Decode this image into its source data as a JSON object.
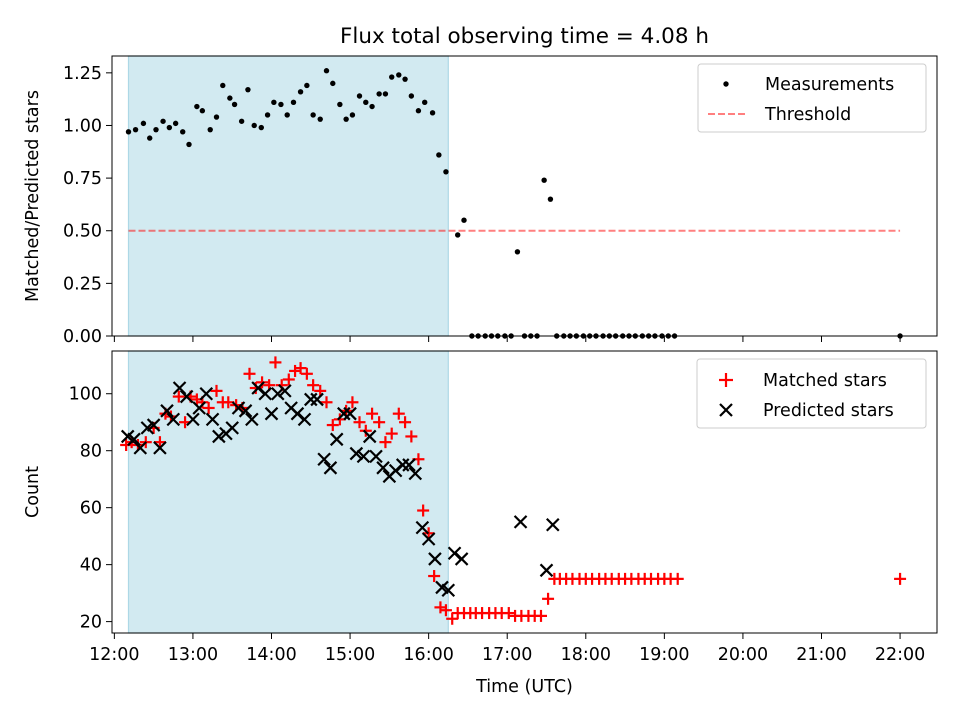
{
  "figure": {
    "title": "Flux total observing time = 4.08 h",
    "xlabel": "Time (UTC)",
    "x_ticks": [
      "12:00",
      "13:00",
      "14:00",
      "15:00",
      "16:00",
      "17:00",
      "18:00",
      "19:00",
      "20:00",
      "21:00",
      "22:00"
    ]
  },
  "colors": {
    "shade": "#add8e6",
    "threshold": "#ff0000",
    "matched": "#ff0000",
    "predicted": "#000000",
    "measurement": "#000000"
  },
  "chart_data": [
    {
      "type": "scatter",
      "panel": "top",
      "ylabel": "Matched/Predicted stars",
      "ylim": [
        0,
        1.33
      ],
      "xlim": [
        11.97,
        22.47
      ],
      "y_ticks": [
        "0.00",
        "0.25",
        "0.50",
        "0.75",
        "1.00",
        "1.25"
      ],
      "shaded_span": [
        12.18,
        16.25
      ],
      "legend": [
        "Measurements",
        "Threshold"
      ],
      "legend_position": "top-right",
      "threshold": {
        "name": "Threshold",
        "y": 0.5,
        "x_range": [
          12.18,
          22.0
        ]
      },
      "series": [
        {
          "name": "Measurements",
          "x": [
            12.18,
            12.27,
            12.37,
            12.45,
            12.53,
            12.62,
            12.7,
            12.78,
            12.87,
            12.95,
            13.05,
            13.12,
            13.22,
            13.3,
            13.38,
            13.47,
            13.53,
            13.62,
            13.7,
            13.78,
            13.87,
            13.95,
            14.03,
            14.12,
            14.2,
            14.28,
            14.37,
            14.45,
            14.53,
            14.62,
            14.7,
            14.78,
            14.87,
            14.95,
            15.03,
            15.12,
            15.2,
            15.28,
            15.37,
            15.45,
            15.53,
            15.62,
            15.7,
            15.78,
            15.87,
            15.95,
            16.05,
            16.13,
            16.22,
            16.37,
            16.45,
            16.55,
            16.63,
            16.72,
            16.8,
            16.88,
            16.97,
            17.05,
            17.13,
            17.22,
            17.3,
            17.38,
            17.47,
            17.55,
            17.63,
            17.72,
            17.8,
            17.88,
            17.97,
            18.05,
            18.13,
            18.22,
            18.3,
            18.38,
            18.47,
            18.55,
            18.63,
            18.72,
            18.8,
            18.88,
            18.97,
            19.05,
            19.13,
            22.0
          ],
          "y": [
            0.97,
            0.98,
            1.01,
            0.94,
            0.98,
            1.02,
            0.99,
            1.01,
            0.97,
            0.91,
            1.09,
            1.07,
            0.98,
            1.04,
            1.19,
            1.13,
            1.1,
            1.02,
            1.17,
            1.0,
            0.99,
            1.05,
            1.11,
            1.1,
            1.05,
            1.11,
            1.16,
            1.19,
            1.05,
            1.03,
            1.26,
            1.2,
            1.1,
            1.03,
            1.05,
            1.14,
            1.11,
            1.09,
            1.15,
            1.15,
            1.23,
            1.24,
            1.22,
            1.14,
            1.07,
            1.11,
            1.06,
            0.86,
            0.78,
            0.48,
            0.55,
            0.0,
            0.0,
            0.0,
            0.0,
            0.0,
            0.0,
            0.0,
            0.4,
            0.0,
            0.0,
            0.0,
            0.74,
            0.65,
            0.0,
            0.0,
            0.0,
            0.0,
            0.0,
            0.0,
            0.0,
            0.0,
            0.0,
            0.0,
            0.0,
            0.0,
            0.0,
            0.0,
            0.0,
            0.0,
            0.0,
            0.0,
            0.0,
            0.0
          ]
        }
      ]
    },
    {
      "type": "scatter",
      "panel": "bottom",
      "ylabel": "Count",
      "ylim": [
        16,
        115
      ],
      "xlim": [
        11.97,
        22.47
      ],
      "y_ticks": [
        "20",
        "40",
        "60",
        "80",
        "100"
      ],
      "shaded_span": [
        12.18,
        16.25
      ],
      "legend": [
        "Matched stars",
        "Predicted stars"
      ],
      "legend_position": "top-right",
      "series": [
        {
          "name": "Matched stars",
          "x": [
            12.15,
            12.22,
            12.3,
            12.4,
            12.5,
            12.58,
            12.65,
            12.72,
            12.82,
            12.9,
            12.97,
            13.05,
            13.12,
            13.2,
            13.3,
            13.38,
            13.45,
            13.55,
            13.63,
            13.72,
            13.8,
            13.88,
            13.97,
            14.05,
            14.13,
            14.22,
            14.3,
            14.37,
            14.45,
            14.53,
            14.62,
            14.7,
            14.78,
            14.87,
            14.95,
            15.03,
            15.12,
            15.2,
            15.28,
            15.37,
            15.45,
            15.53,
            15.62,
            15.7,
            15.78,
            15.87,
            15.93,
            16.0,
            16.07,
            16.15,
            16.22,
            16.3,
            16.37,
            16.45,
            16.53,
            16.6,
            16.68,
            16.77,
            16.85,
            16.93,
            17.02,
            17.1,
            17.18,
            17.27,
            17.35,
            17.43,
            17.52,
            17.6,
            17.67,
            17.75,
            17.83,
            17.92,
            18.0,
            18.08,
            18.17,
            18.25,
            18.33,
            18.42,
            18.5,
            18.58,
            18.67,
            18.75,
            18.83,
            18.92,
            19.0,
            19.08,
            19.17,
            22.0
          ],
          "y": [
            82,
            83,
            82,
            83,
            88,
            83,
            93,
            92,
            99,
            90,
            99,
            98,
            97,
            95,
            101,
            97,
            97,
            96,
            95,
            107,
            102,
            104,
            103,
            111,
            103,
            105,
            108,
            109,
            107,
            103,
            101,
            97,
            89,
            91,
            94,
            97,
            90,
            87,
            93,
            90,
            83,
            86,
            93,
            90,
            85,
            77,
            59,
            51,
            36,
            25,
            24,
            21,
            23,
            23,
            23,
            23,
            23,
            23,
            23,
            23,
            23,
            22,
            22,
            22,
            22,
            22,
            28,
            35,
            35,
            35,
            35,
            35,
            35,
            35,
            35,
            35,
            35,
            35,
            35,
            35,
            35,
            35,
            35,
            35,
            35,
            35,
            35,
            35
          ]
        },
        {
          "name": "Predicted stars",
          "x": [
            12.17,
            12.25,
            12.33,
            12.42,
            12.5,
            12.58,
            12.67,
            12.75,
            12.83,
            12.92,
            13.0,
            13.08,
            13.17,
            13.25,
            13.33,
            13.42,
            13.5,
            13.58,
            13.67,
            13.75,
            13.83,
            13.92,
            14.0,
            14.08,
            14.17,
            14.25,
            14.33,
            14.42,
            14.5,
            14.58,
            14.67,
            14.75,
            14.83,
            14.92,
            15.0,
            15.08,
            15.17,
            15.25,
            15.33,
            15.42,
            15.5,
            15.58,
            15.67,
            15.75,
            15.83,
            15.92,
            16.0,
            16.08,
            16.17,
            16.25,
            16.33,
            16.42,
            17.17,
            17.5,
            17.58
          ],
          "y": [
            85,
            84,
            81,
            88,
            89,
            81,
            94,
            91,
            102,
            99,
            91,
            95,
            100,
            91,
            85,
            86,
            88,
            95,
            94,
            91,
            102,
            100,
            93,
            100,
            101,
            95,
            93,
            91,
            98,
            98,
            77,
            74,
            84,
            93,
            93,
            79,
            78,
            85,
            78,
            74,
            71,
            73,
            75,
            75,
            72,
            53,
            49,
            42,
            32,
            31,
            44,
            42,
            55,
            38,
            54
          ]
        }
      ]
    }
  ]
}
